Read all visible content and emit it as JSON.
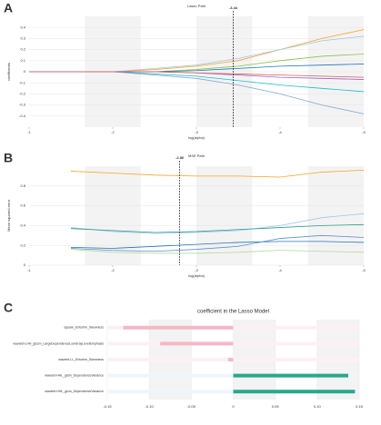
{
  "chart_data": [
    {
      "type": "line",
      "label": "A",
      "title": "Lasso Path",
      "ylabel": "coefficients",
      "xlabel": "log(alpha)",
      "x": [
        -1,
        -1.5,
        -2,
        -2.5,
        -3,
        -3.5,
        -4,
        -4.5,
        -5
      ],
      "xlim": [
        -1,
        -5
      ],
      "xticks": [
        -1,
        -2,
        -3,
        -4,
        -5
      ],
      "ylim": [
        -0.5,
        0.5
      ],
      "yticks": [
        -0.4,
        -0.3,
        -0.2,
        -0.1,
        0,
        0.1,
        0.2,
        0.3,
        0.4
      ],
      "vline": {
        "value": -3.44,
        "label": "-3.44"
      },
      "series": [
        {
          "color": "#f5a623",
          "values": [
            0,
            0,
            0,
            0.02,
            0.05,
            0.1,
            0.2,
            0.3,
            0.38
          ]
        },
        {
          "color": "#9fc5e8",
          "values": [
            0,
            0,
            0,
            0.03,
            0.06,
            0.12,
            0.2,
            0.28,
            0.32
          ]
        },
        {
          "color": "#8bc34a",
          "values": [
            0,
            0,
            0,
            0,
            0.02,
            0.05,
            0.1,
            0.14,
            0.16
          ]
        },
        {
          "color": "#1f77b4",
          "values": [
            0,
            0,
            0,
            0,
            0.01,
            0.03,
            0.05,
            0.06,
            0.07
          ]
        },
        {
          "color": "#9467bd",
          "values": [
            0,
            0,
            0,
            0,
            -0.01,
            -0.03,
            -0.05,
            -0.06,
            -0.07
          ]
        },
        {
          "color": "#17becf",
          "values": [
            0,
            0,
            0,
            -0.02,
            -0.04,
            -0.08,
            -0.12,
            -0.15,
            -0.18
          ]
        },
        {
          "color": "#7fa7d0",
          "values": [
            0,
            0,
            0,
            -0.03,
            -0.06,
            -0.12,
            -0.2,
            -0.3,
            -0.38
          ]
        },
        {
          "color": "#e15759",
          "values": [
            0,
            0,
            0,
            0,
            -0.01,
            -0.02,
            -0.03,
            -0.04,
            -0.05
          ]
        }
      ]
    },
    {
      "type": "line",
      "label": "B",
      "title": "MSE Path",
      "ylabel": "Mean squared error",
      "xlabel": "log(alpha)",
      "x": [
        -1,
        -1.5,
        -2,
        -2.5,
        -3,
        -3.5,
        -4,
        -4.5,
        -5
      ],
      "xlim": [
        -1,
        -5
      ],
      "xticks": [
        -1,
        -2,
        -3,
        -4,
        -5
      ],
      "ylim": [
        0,
        1
      ],
      "yticks": [
        0,
        0.2,
        0.4,
        0.6,
        0.8
      ],
      "vline": {
        "value": -2.8,
        "label": "-2.80"
      },
      "series": [
        {
          "color": "#f5a623",
          "values": [
            null,
            0.95,
            0.93,
            0.91,
            0.9,
            0.9,
            0.89,
            0.94,
            0.96
          ]
        },
        {
          "color": "#9fc5e8",
          "values": [
            null,
            0.38,
            0.34,
            0.32,
            0.33,
            0.35,
            0.4,
            0.48,
            0.52
          ]
        },
        {
          "color": "#2a9d8f",
          "values": [
            null,
            0.37,
            0.35,
            0.33,
            0.34,
            0.36,
            0.38,
            0.4,
            0.41
          ]
        },
        {
          "color": "#1f77b4",
          "values": [
            null,
            0.18,
            0.17,
            0.19,
            0.21,
            0.23,
            0.24,
            0.24,
            0.23
          ]
        },
        {
          "color": "#5b8fd0",
          "values": [
            null,
            0.17,
            0.15,
            0.14,
            0.16,
            0.19,
            0.27,
            0.3,
            0.28
          ]
        },
        {
          "color": "#b5d99c",
          "values": [
            null,
            0.16,
            0.13,
            0.12,
            0.12,
            0.13,
            0.15,
            0.14,
            0.13
          ]
        }
      ]
    },
    {
      "type": "barh",
      "label": "C",
      "title": "coefficient in the Lasso Model",
      "categories": [
        "square_Entorhin_Skewness",
        "wavelet-LHH_glszm_LargeDependenceLowGrayLevelEmphasis",
        "wavelet-LL_Entorhin_Skewness",
        "wavelet-HHL_gldm_DependenceVariance",
        "wavelet-HHL_glcm_DependenceVariance"
      ],
      "values": [
        -0.131,
        -0.087,
        -0.006,
        0.137,
        0.145
      ],
      "colors": [
        "#f4b8c8",
        "#f4b8c8",
        "#f4b8c8",
        "#2aa88a",
        "#2aa88a"
      ],
      "xlim": [
        -0.15,
        0.15
      ],
      "xticks": [
        -0.15,
        {
          "value": -0.1,
          "label": "-0.10"
        },
        -0.05,
        0,
        0.05,
        {
          "value": 0.1,
          "label": "0.10"
        },
        0.15
      ]
    }
  ]
}
